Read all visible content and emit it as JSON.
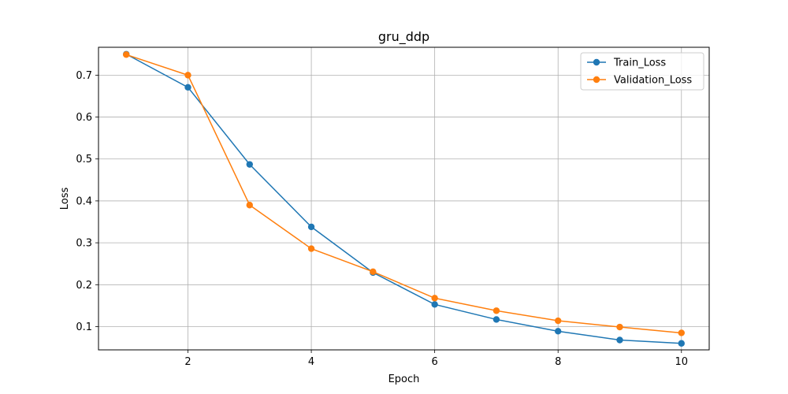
{
  "chart_data": {
    "type": "line",
    "title": "gru_ddp",
    "xlabel": "Epoch",
    "ylabel": "Loss",
    "xlim": [
      0.55,
      10.45
    ],
    "ylim": [
      0.0445,
      0.7665
    ],
    "xticks": [
      2,
      4,
      6,
      8,
      10
    ],
    "yticks": [
      0.1,
      0.2,
      0.3,
      0.4,
      0.5,
      0.6,
      0.7
    ],
    "grid": true,
    "legend_position": "top-right",
    "x": [
      1,
      2,
      3,
      4,
      5,
      6,
      7,
      8,
      9,
      10
    ],
    "series": [
      {
        "name": "Train_Loss",
        "color": "#1f77b4",
        "marker": "circle",
        "values": [
          0.75,
          0.671,
          0.487,
          0.338,
          0.229,
          0.153,
          0.117,
          0.089,
          0.068,
          0.06
        ]
      },
      {
        "name": "Validation_Loss",
        "color": "#ff7f0e",
        "marker": "circle",
        "values": [
          0.749,
          0.7,
          0.39,
          0.286,
          0.231,
          0.168,
          0.138,
          0.114,
          0.099,
          0.085
        ]
      }
    ]
  }
}
